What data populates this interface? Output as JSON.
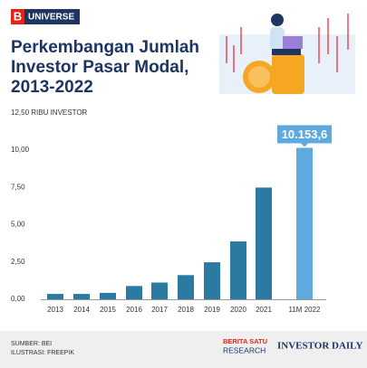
{
  "brand": {
    "letter": "B",
    "name": "UNIVERSE"
  },
  "chart_data": {
    "type": "bar",
    "title": "Perkembangan Jumlah Investor Pasar Modal, 2013-2022",
    "categories": [
      "2013",
      "2014",
      "2015",
      "2016",
      "2017",
      "2018",
      "2019",
      "2020",
      "2021",
      "11M 2022"
    ],
    "values": [
      0.36,
      0.36,
      0.43,
      0.89,
      1.12,
      1.62,
      2.48,
      3.88,
      7.49,
      10.1536
    ],
    "value_labels": [
      null,
      null,
      null,
      null,
      null,
      null,
      null,
      null,
      null,
      "10.153,6"
    ],
    "colors": [
      "#2b7aa1",
      "#2b7aa1",
      "#2b7aa1",
      "#2b7aa1",
      "#2b7aa1",
      "#2b7aa1",
      "#2b7aa1",
      "#2b7aa1",
      "#2b7aa1",
      "#5ea9dd"
    ],
    "ylim": [
      0,
      12.5
    ],
    "yticks": [
      {
        "value": 0,
        "label": "0,00"
      },
      {
        "value": 2.5,
        "label": "2,50"
      },
      {
        "value": 5,
        "label": "5,00"
      },
      {
        "value": 7.5,
        "label": "7,50"
      },
      {
        "value": 10,
        "label": "10,00"
      },
      {
        "value": 12.5,
        "label": "12,50 RIBU INVESTOR"
      }
    ],
    "grid": false
  },
  "footer": {
    "source": "SUMBER: BEI",
    "illustration": "ILUSTRASI: FREEPIK",
    "logo1_top": "BERITA SATU",
    "logo1_bottom": "RESEARCH",
    "logo2": "INVESTOR DAILY"
  }
}
